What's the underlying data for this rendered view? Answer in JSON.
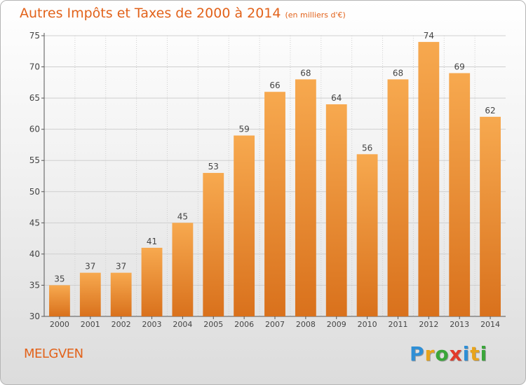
{
  "chart_data": {
    "type": "bar",
    "title": "Autres Impôts et Taxes de 2000 à 2014",
    "unit_note": "(en milliers d'€)",
    "categories": [
      "2000",
      "2001",
      "2002",
      "2003",
      "2004",
      "2005",
      "2006",
      "2007",
      "2008",
      "2009",
      "2010",
      "2011",
      "2012",
      "2013",
      "2014"
    ],
    "values": [
      35,
      37,
      37,
      41,
      45,
      53,
      59,
      66,
      68,
      64,
      56,
      68,
      74,
      69,
      62
    ],
    "ylim": [
      30,
      75
    ],
    "yticks": [
      30,
      35,
      40,
      45,
      50,
      55,
      60,
      65,
      70,
      75
    ],
    "grid": true,
    "xlabel": "",
    "ylabel": "",
    "bar_color_top": "#f7a94f",
    "bar_color_bottom": "#d9711c"
  },
  "footer": {
    "location": "MELGVEN",
    "logo_letters": [
      {
        "ch": "P",
        "color": "#2e8fd6"
      },
      {
        "ch": "r",
        "color": "#e8a41c"
      },
      {
        "ch": "o",
        "color": "#3aa63a"
      },
      {
        "ch": "x",
        "color": "#e23a2a"
      },
      {
        "ch": "i",
        "color": "#2e8fd6"
      },
      {
        "ch": "t",
        "color": "#e8a41c"
      },
      {
        "ch": "i",
        "color": "#3aa63a"
      }
    ]
  },
  "colors": {
    "accent": "#e2621a",
    "axis": "#555555",
    "grid": "#cfcfcf"
  }
}
